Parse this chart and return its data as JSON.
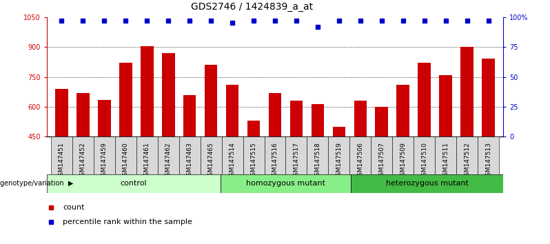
{
  "title": "GDS2746 / 1424839_a_at",
  "samples": [
    "GSM147451",
    "GSM147452",
    "GSM147459",
    "GSM147460",
    "GSM147461",
    "GSM147462",
    "GSM147463",
    "GSM147465",
    "GSM147514",
    "GSM147515",
    "GSM147516",
    "GSM147517",
    "GSM147518",
    "GSM147519",
    "GSM147506",
    "GSM147507",
    "GSM147509",
    "GSM147510",
    "GSM147511",
    "GSM147512",
    "GSM147513"
  ],
  "counts": [
    690,
    670,
    635,
    820,
    905,
    870,
    660,
    810,
    710,
    530,
    670,
    630,
    615,
    500,
    630,
    600,
    710,
    820,
    760,
    900,
    840
  ],
  "percentile_ranks": [
    97,
    97,
    97,
    97,
    97,
    97,
    97,
    97,
    95,
    97,
    97,
    97,
    92,
    97,
    97,
    97,
    97,
    97,
    97,
    97,
    97
  ],
  "groups_info": [
    {
      "label": "control",
      "start": 0,
      "end": 8,
      "color": "#ccffcc"
    },
    {
      "label": "homozygous mutant",
      "start": 8,
      "end": 14,
      "color": "#88ee88"
    },
    {
      "label": "heterozygous mutant",
      "start": 14,
      "end": 21,
      "color": "#44bb44"
    }
  ],
  "ylim": [
    450,
    1050
  ],
  "yticks_left": [
    450,
    600,
    750,
    900,
    1050
  ],
  "right_yticks_pct": [
    0,
    25,
    50,
    75,
    100
  ],
  "bar_color": "#cc0000",
  "dot_color": "#0000cc",
  "grid_color": "#000000",
  "title_fontsize": 10,
  "tick_fontsize": 7,
  "label_fontsize": 8,
  "legend_fontsize": 8,
  "xticklabel_bg": "#d8d8d8"
}
